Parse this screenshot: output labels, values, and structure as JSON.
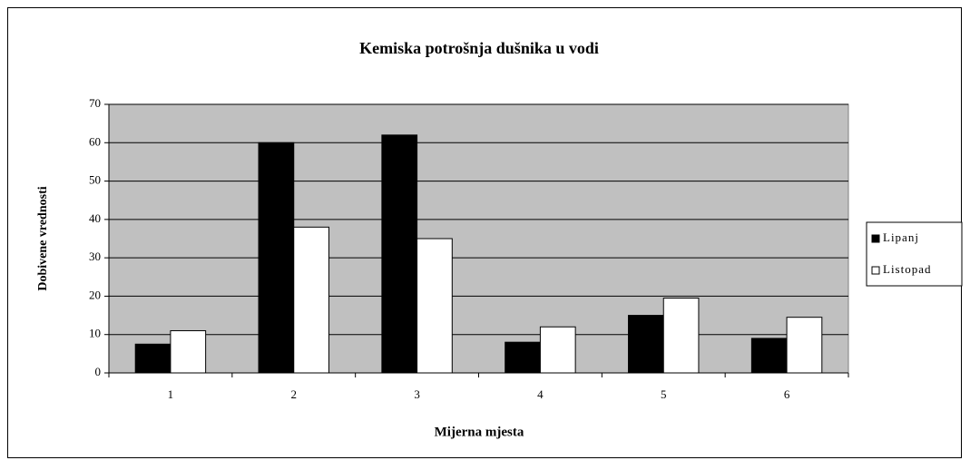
{
  "chart_data": {
    "type": "bar",
    "title": "Kemiska potrošnja dušnika u vodi",
    "y_label": "Dobivene vrednosti",
    "x_label": "Mijerna mjesta",
    "categories": [
      "1",
      "2",
      "3",
      "4",
      "5",
      "6"
    ],
    "series": [
      {
        "name": "Lipanj",
        "color": "#000000",
        "values": [
          7.5,
          60,
          62,
          8,
          15,
          9
        ]
      },
      {
        "name": "Listopad",
        "color": "#ffffff",
        "values": [
          11,
          38,
          35,
          12,
          19.5,
          14.5
        ]
      }
    ],
    "ylim": [
      0,
      70
    ],
    "yticks": [
      0,
      10,
      20,
      30,
      40,
      50,
      60,
      70
    ],
    "grid": true,
    "plot_background": "#c0c0c0",
    "legend": "right"
  }
}
